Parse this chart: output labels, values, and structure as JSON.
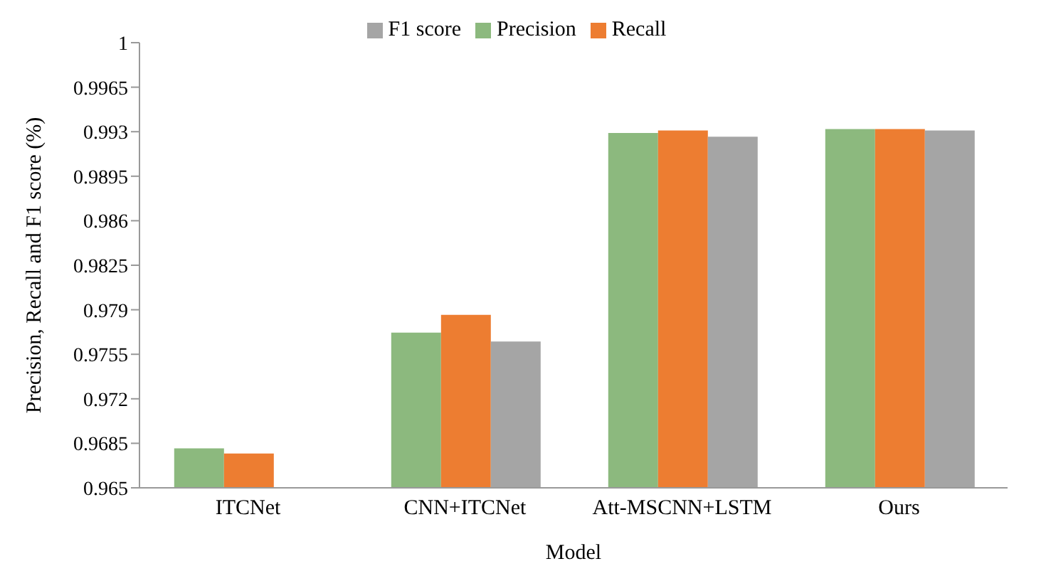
{
  "chart_data": {
    "type": "bar",
    "xlabel": "Model",
    "ylabel": "Precision, Recall and F1 score (%)",
    "categories": [
      "ITCNet",
      "CNN+ITCNet",
      "Att-MSCNN+LSTM",
      "Ours"
    ],
    "series": [
      {
        "name": "Precision",
        "color": "#8cb97e",
        "values": [
          0.9681,
          0.9772,
          0.9929,
          0.9932
        ]
      },
      {
        "name": "Recall",
        "color": "#ed7d31",
        "values": [
          0.9677,
          0.9786,
          0.9931,
          0.9932
        ]
      },
      {
        "name": "F1 score",
        "color": "#a5a5a5",
        "values": [
          0.965,
          0.9765,
          0.9926,
          0.9931
        ]
      }
    ],
    "ylim": [
      0.965,
      1
    ],
    "yticks": [
      0.965,
      0.9685,
      0.972,
      0.9755,
      0.979,
      0.9825,
      0.986,
      0.9895,
      0.993,
      0.9965,
      1
    ],
    "grid": false,
    "legend": "top"
  }
}
